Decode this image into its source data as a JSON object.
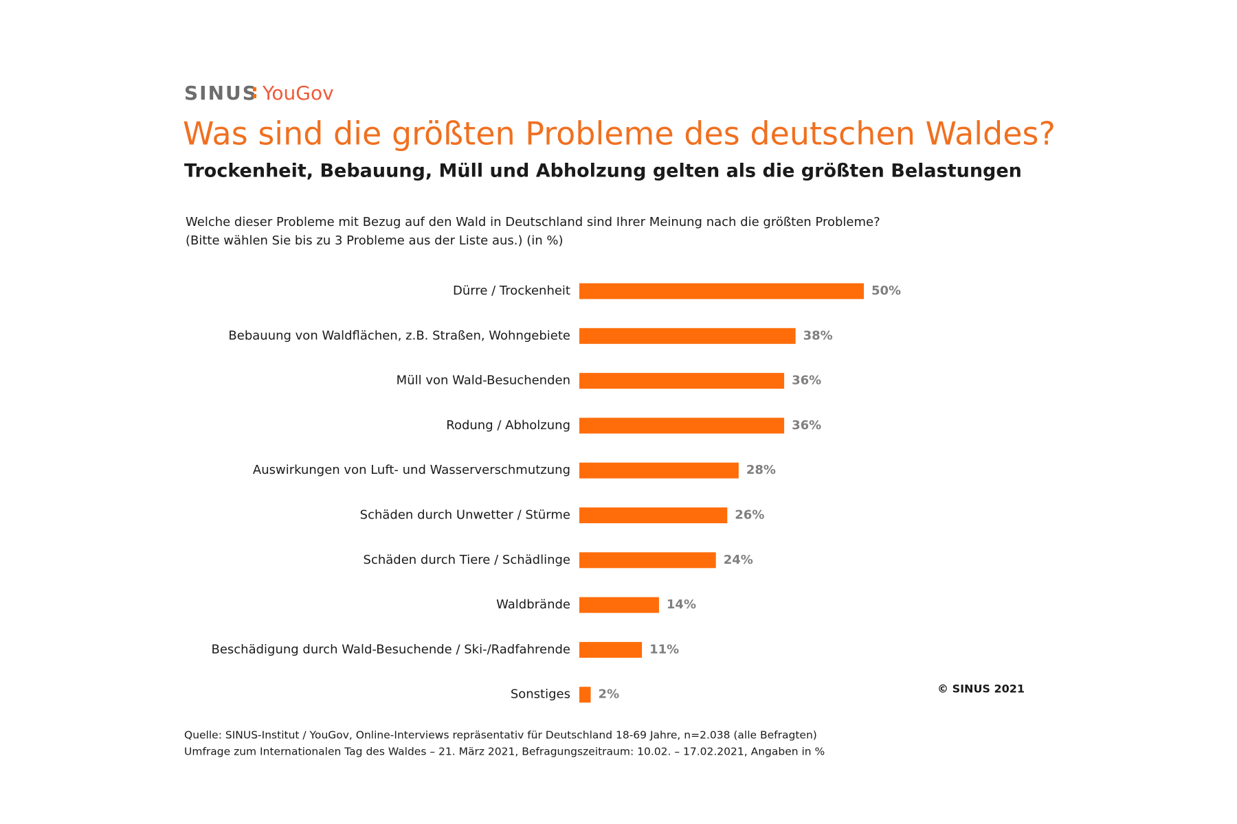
{
  "logo": {
    "left": "SINUS",
    "right": "YouGov"
  },
  "chart_data": {
    "type": "bar",
    "orientation": "horizontal",
    "title": "Was sind die größten Probleme des deutschen Waldes?",
    "subtitle": "Trockenheit, Bebauung, Müll und Abholzung gelten als die größten Belastungen",
    "question": [
      "Welche dieser Probleme mit Bezug auf den Wald in Deutschland sind Ihrer Meinung nach die größten Probleme?",
      "(Bitte wählen Sie bis zu 3 Probleme aus der Liste aus.) (in %)"
    ],
    "categories": [
      "Dürre / Trockenheit",
      "Bebauung von Waldflächen, z.B. Straßen, Wohngebiete",
      "Müll von Wald-Besuchenden",
      "Rodung / Abholzung",
      "Auswirkungen von Luft- und Wasserverschmutzung",
      "Schäden durch Unwetter / Stürme",
      "Schäden durch Tiere / Schädlinge",
      "Waldbrände",
      "Beschädigung durch Wald-Besuchende / Ski-/Radfahrende",
      "Sonstiges"
    ],
    "values": [
      50,
      38,
      36,
      36,
      28,
      26,
      24,
      14,
      11,
      2
    ],
    "value_labels": [
      "50%",
      "38%",
      "36%",
      "36%",
      "28%",
      "26%",
      "24%",
      "14%",
      "11%",
      "2%"
    ],
    "color": "#ff6d0a",
    "copyright": "© SINUS 2021",
    "source": [
      "Quelle: SINUS-Institut / YouGov, Online-Interviews repräsentativ für Deutschland 18-69 Jahre, n=2.038 (alle Befragten)",
      "Umfrage zum Internationalen Tag des Waldes – 21. März 2021, Befragungszeitraum: 10.02. – 17.02.2021, Angaben in %"
    ]
  }
}
